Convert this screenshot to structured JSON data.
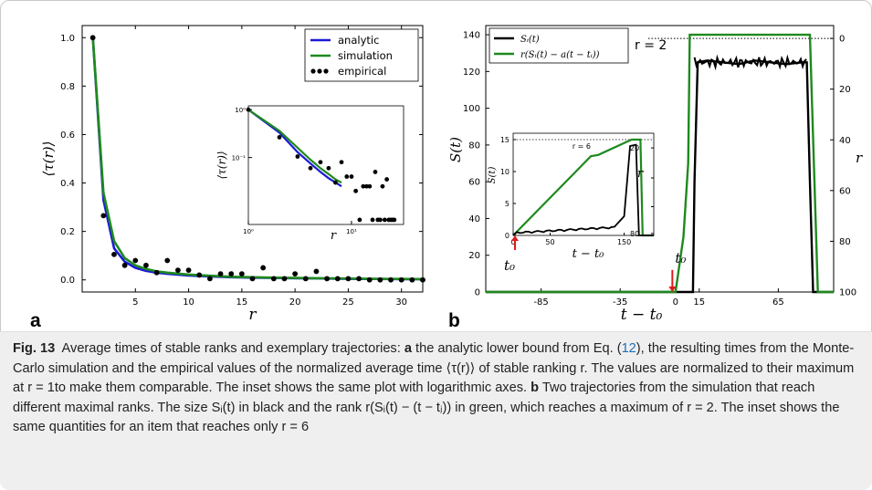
{
  "colors": {
    "analytic": "#1a1ad6",
    "simulation": "#1e8a1e",
    "empirical": "#000000",
    "caption_bg": "#efefef",
    "link": "#1f6fb5",
    "marker": "#e01a1a"
  },
  "panel_a_letter": "a",
  "panel_b_letter": "b",
  "chart_data": [
    {
      "id": "a",
      "type": "line",
      "xlabel": "r",
      "ylabel": "⟨τ(r)⟩",
      "xlim": [
        0,
        32
      ],
      "ylim": [
        -0.05,
        1.05
      ],
      "xticks": [
        "5",
        "10",
        "15",
        "20",
        "25",
        "30"
      ],
      "yticks": [
        "0.0",
        "0.2",
        "0.4",
        "0.6",
        "0.8",
        "1.0"
      ],
      "legend": {
        "placement": "top-right",
        "entries": [
          "analytic",
          "simulation",
          "empirical"
        ]
      },
      "series": [
        {
          "name": "analytic",
          "x": [
            1,
            2,
            3,
            4,
            5,
            6,
            7,
            8,
            10,
            12,
            14,
            16,
            18,
            20,
            22,
            24,
            26,
            28,
            30,
            32
          ],
          "values": [
            1.0,
            0.33,
            0.13,
            0.075,
            0.05,
            0.037,
            0.03,
            0.025,
            0.018,
            0.014,
            0.011,
            0.009,
            0.008,
            0.007,
            0.006,
            0.005,
            0.004,
            0.004,
            0.003,
            0.003
          ]
        },
        {
          "name": "simulation",
          "x": [
            1,
            2,
            3,
            4,
            5,
            6,
            7,
            8,
            10,
            12,
            14,
            16,
            18,
            20,
            22,
            24,
            26,
            28,
            30,
            32
          ],
          "values": [
            1.0,
            0.36,
            0.16,
            0.09,
            0.06,
            0.045,
            0.035,
            0.03,
            0.022,
            0.017,
            0.013,
            0.011,
            0.009,
            0.008,
            0.007,
            0.006,
            0.005,
            0.004,
            0.004,
            0.003
          ]
        },
        {
          "name": "empirical",
          "x": [
            1,
            2,
            3,
            4,
            5,
            6,
            7,
            8,
            9,
            10,
            11,
            12,
            13,
            14,
            15,
            16,
            17,
            18,
            19,
            20,
            21,
            22,
            23,
            24,
            25,
            26,
            27,
            28,
            29,
            30,
            31,
            32
          ],
          "values": [
            1.0,
            0.265,
            0.105,
            0.06,
            0.08,
            0.06,
            0.03,
            0.08,
            0.04,
            0.04,
            0.02,
            0.005,
            0.025,
            0.025,
            0.025,
            0.005,
            0.05,
            0.005,
            0.005,
            0.025,
            0.005,
            0.035,
            0.005,
            0.005,
            0.005,
            0.005,
            0.0,
            0.0,
            0.0,
            0.0,
            0.0,
            0.0
          ]
        }
      ],
      "inset": {
        "xlabel": "r",
        "ylabel": "⟨τ(r)⟩",
        "log_scale": true,
        "xticks": [
          "10⁰",
          "10¹"
        ],
        "yticks": [
          "10⁰",
          "10⁻¹"
        ],
        "xlim": [
          1,
          32
        ],
        "ylim": [
          0.004,
          1.2
        ]
      }
    },
    {
      "id": "b",
      "type": "line",
      "xlabel": "t − t₀",
      "ylabel": "S(t)",
      "y2label": "r",
      "xlim": [
        -120,
        100
      ],
      "ylim": [
        0,
        145
      ],
      "xticks": [
        "-85",
        "-35",
        "0",
        "15",
        "65"
      ],
      "yticks": [
        "0",
        "20",
        "40",
        "60",
        "80",
        "100",
        "120",
        "140"
      ],
      "y2ticks": [
        "0",
        "20",
        "40",
        "60",
        "80",
        "100"
      ],
      "legend": {
        "placement": "top-left",
        "entries": [
          "Sᵢ(t)",
          "r(Sᵢ(t) − a(t − tᵢ))"
        ]
      },
      "reference_label": "r = 2",
      "marker_label": "t₀",
      "series": [
        {
          "name": "Sᵢ(t)",
          "x": [
            -120,
            0,
            8,
            11,
            12,
            14,
            20,
            30,
            40,
            50,
            60,
            70,
            80,
            83,
            85,
            87,
            100
          ],
          "values": [
            0,
            0,
            0,
            0,
            60,
            125,
            126,
            125,
            124,
            126,
            125,
            124,
            125,
            125,
            60,
            0,
            0
          ]
        },
        {
          "name": "r(Sᵢ(t) − a(t − tᵢ))",
          "x": [
            -120,
            -10,
            0,
            5,
            8,
            9,
            12,
            80,
            85,
            90,
            100
          ],
          "values": [
            0,
            0,
            0,
            30,
            70,
            140,
            140,
            140,
            140,
            0,
            0
          ]
        }
      ],
      "inset": {
        "xlabel": "t − t₀",
        "ylabel": "S(t)",
        "y2label": "r",
        "xticks": [
          "0",
          "50",
          "150"
        ],
        "yticks": [
          "0",
          "5",
          "10",
          "15"
        ],
        "y2ticks": [
          "20",
          "40",
          "60",
          "80"
        ],
        "reference_label": "r = 6",
        "marker_label": "t₀"
      }
    }
  ],
  "caption": {
    "fig_label": "Fig. 13",
    "lead": "Average times of stable ranks and exemplary trajectories:",
    "a_label": "a",
    "a_text_1": "the analytic lower bound from Eq. (",
    "eq_ref": "12",
    "a_text_2": "), the resulting times from the Monte-Carlo simulation and the empirical values of the normalized average time ⟨τ(r)⟩ of stable ranking r. The values are normalized to their maximum at r = 1to make them comparable. The inset shows the same plot with logarithmic axes.",
    "b_label": "b",
    "b_text": "Two trajectories from the simulation that reach different maximal ranks. The size Sᵢ(t) in black and the rank r(Sᵢ(t) − (t − tⱼ)) in green, which reaches a maximum of r = 2. The inset shows the same quantities for an item that reaches only r = 6"
  }
}
